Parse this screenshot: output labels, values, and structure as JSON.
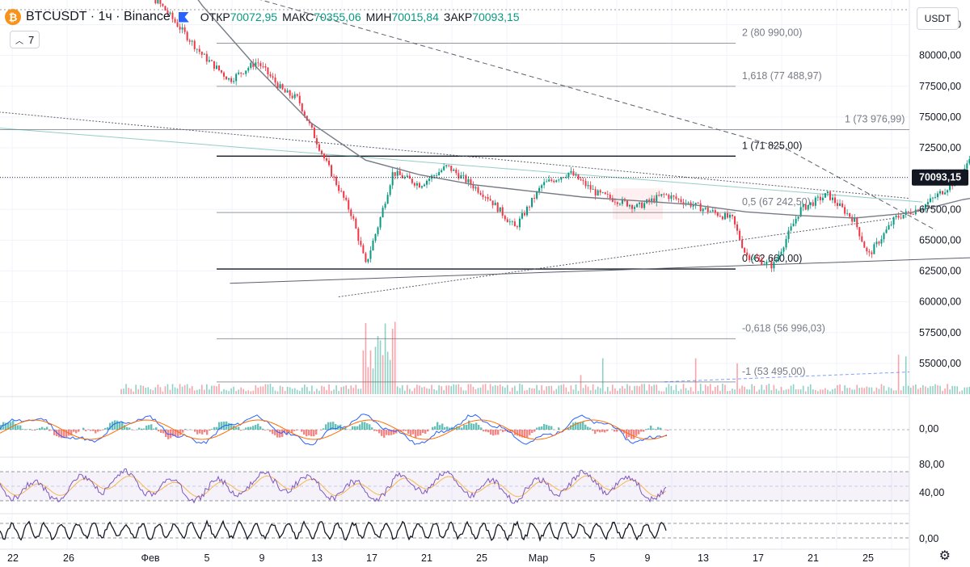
{
  "header": {
    "title": "BTCUSDT · 1ч · Binance",
    "open_label": "ОТКР",
    "open_value": "70072,95",
    "high_label": "МАКС",
    "high_value": "70355,06",
    "low_label": "МИН",
    "low_value": "70015,84",
    "close_label": "ЗАКР",
    "close_value": "70093,15",
    "indicator_count": "7",
    "currency": "USDT",
    "coin_icon": "bitcoin-icon",
    "chevron_icon": "chevron-up-icon"
  },
  "colors": {
    "up": "#089981",
    "down": "#f23645",
    "ma": "#787b86",
    "fib": "#363a45",
    "trend": "#5d606b",
    "annot": "#e0312f",
    "rsi": "#7e57c2",
    "rsi_ma": "#f7b84b",
    "macd": "#2962ff",
    "macd_sig": "#ff6d00",
    "price_tag": "#131722"
  },
  "chart_data": {
    "type": "candlestick",
    "symbol": "BTCUSDT",
    "interval": "1ч",
    "exchange": "Binance",
    "price_axis": {
      "range": [
        52500,
        84500
      ],
      "ticks": [
        "82500,00",
        "80000,00",
        "77500,00",
        "75000,00",
        "72500,00",
        "70000,00",
        "67500,00",
        "65000,00",
        "62500,00",
        "60000,00",
        "57500,00",
        "55000,00"
      ],
      "tick_values": [
        82500,
        80000,
        77500,
        75000,
        72500,
        70000,
        67500,
        65000,
        62500,
        60000,
        57500,
        55000
      ]
    },
    "time_axis": {
      "ticks": [
        "22",
        "26",
        "Фев",
        "5",
        "9",
        "13",
        "17",
        "21",
        "25",
        "Мар",
        "5",
        "9",
        "13",
        "17",
        "21",
        "25"
      ]
    },
    "last_price": {
      "value": 70093.15,
      "label": "70093,15"
    },
    "price_path": [
      [
        0,
        87000
      ],
      [
        3,
        84000
      ],
      [
        6,
        80000
      ],
      [
        8,
        78000
      ],
      [
        10,
        79500
      ],
      [
        12,
        77000
      ],
      [
        13,
        76500
      ],
      [
        15,
        71500
      ],
      [
        17,
        67000
      ],
      [
        18,
        63000
      ],
      [
        19,
        66500
      ],
      [
        20,
        70500
      ],
      [
        22,
        69500
      ],
      [
        24,
        71000
      ],
      [
        27,
        68500
      ],
      [
        29,
        66000
      ],
      [
        31,
        69500
      ],
      [
        33,
        70500
      ],
      [
        35,
        68800
      ],
      [
        38,
        67700
      ],
      [
        40,
        68700
      ],
      [
        42,
        67900
      ],
      [
        45,
        66700
      ],
      [
        46,
        63800
      ],
      [
        48,
        62900
      ],
      [
        50,
        67500
      ],
      [
        52,
        68700
      ],
      [
        54,
        66600
      ],
      [
        55,
        63700
      ],
      [
        57,
        66800
      ],
      [
        59,
        67700
      ],
      [
        62,
        70300
      ],
      [
        63,
        73700
      ],
      [
        65,
        71200
      ],
      [
        67,
        69500
      ],
      [
        69,
        67800
      ],
      [
        71,
        67600
      ],
      [
        72,
        68200
      ],
      [
        73,
        69900
      ],
      [
        74,
        70093
      ]
    ],
    "moving_average": [
      [
        2,
        90000
      ],
      [
        6,
        84000
      ],
      [
        10,
        79000
      ],
      [
        14,
        74500
      ],
      [
        18,
        71500
      ],
      [
        22,
        70300
      ],
      [
        26,
        69500
      ],
      [
        30,
        69000
      ],
      [
        34,
        68500
      ],
      [
        38,
        68200
      ],
      [
        42,
        67900
      ],
      [
        46,
        67300
      ],
      [
        50,
        67000
      ],
      [
        54,
        66800
      ],
      [
        58,
        67200
      ],
      [
        62,
        68300
      ],
      [
        66,
        69000
      ],
      [
        70,
        68500
      ],
      [
        74,
        68400
      ]
    ],
    "fibonacci": [
      {
        "level": "2",
        "price": 80990,
        "label": "2 (80 990,00)"
      },
      {
        "level": "1,618",
        "price": 77488.97,
        "label": "1,618 (77 488,97)"
      },
      {
        "level": "1",
        "price": 73976.99,
        "label": "1 (73 976,99)"
      },
      {
        "level": "1",
        "price": 71825,
        "label": "1 (71 825,00)"
      },
      {
        "level": "0,5",
        "price": 67242.5,
        "label": "0,5 (67 242,50)"
      },
      {
        "level": "0",
        "price": 62660,
        "label": "0 (62 660,00)"
      },
      {
        "level": "-0,618",
        "price": 56996.03,
        "label": "-0,618 (56 996,03)"
      },
      {
        "level": "-1",
        "price": 53495,
        "label": "-1 (53 495,00)"
      }
    ],
    "macd": {
      "axis_ticks": [
        "0,00"
      ]
    },
    "rsi": {
      "axis_ticks": [
        "80,00",
        "40,00"
      ],
      "band": [
        30,
        70
      ]
    },
    "stochastic": {
      "axis_ticks": [
        "0,00"
      ]
    }
  }
}
